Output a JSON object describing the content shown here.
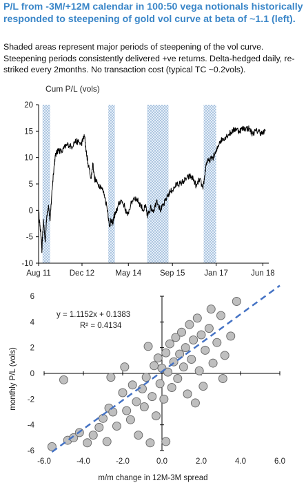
{
  "title": "P/L from -3M/+12M calendar in 100:50 vega notionals historically responded to steepening of gold vol curve at beta of ~1.1 (left).",
  "subtitle": "Shaded areas represent major periods of steepening of the vol curve. Steepening periods consistently delivered +ve returns. Delta-hedged daily, re-striked every 2months. No transaction cost (typical TC ~0.2vols).",
  "chart_data": [
    {
      "type": "line",
      "title": "",
      "ylabel": "Cum P/L (vols)",
      "xlabel": "",
      "ylim": [
        -10,
        20
      ],
      "yticks": [
        -10,
        -5,
        0,
        5,
        10,
        15,
        20
      ],
      "xlim": [
        2011.6,
        2018.6
      ],
      "xtick_labels": [
        "Aug 11",
        "Dec 12",
        "May 14",
        "Sep 15",
        "Jan 17",
        "Jun 18"
      ],
      "xtick_positions": [
        2011.6,
        2012.92,
        2014.33,
        2015.67,
        2017.0,
        2018.42
      ],
      "shaded_periods": [
        [
          2011.72,
          2011.95
        ],
        [
          2013.72,
          2013.92
        ],
        [
          2014.9,
          2015.55
        ],
        [
          2016.62,
          2017.0
        ]
      ],
      "shaded_color": "#aec6e0",
      "line_color": "#000000",
      "series": [
        {
          "x": [
            2011.6,
            2011.64,
            2011.68,
            2011.7,
            2011.72,
            2011.75,
            2011.8,
            2011.85,
            2011.9,
            2011.95,
            2012.0,
            2012.05,
            2012.1,
            2012.15,
            2012.2,
            2012.3,
            2012.4,
            2012.5,
            2012.6,
            2012.7,
            2012.8,
            2012.9,
            2012.95,
            2013.0,
            2013.05,
            2013.1,
            2013.2,
            2013.25,
            2013.3,
            2013.4,
            2013.5,
            2013.6,
            2013.7,
            2013.75,
            2013.8,
            2013.85,
            2013.9,
            2013.95,
            2014.0,
            2014.1,
            2014.2,
            2014.3,
            2014.4,
            2014.5,
            2014.6,
            2014.7,
            2014.8,
            2014.85,
            2014.9,
            2014.95,
            2015.0,
            2015.1,
            2015.2,
            2015.3,
            2015.4,
            2015.5,
            2015.6,
            2015.7,
            2015.8,
            2015.9,
            2016.0,
            2016.1,
            2016.2,
            2016.3,
            2016.4,
            2016.5,
            2016.6,
            2016.65,
            2016.7,
            2016.8,
            2016.9,
            2017.0,
            2017.1,
            2017.2,
            2017.3,
            2017.4,
            2017.5,
            2017.6,
            2017.7,
            2017.8,
            2017.9,
            2018.0,
            2018.1,
            2018.2,
            2018.3,
            2018.4,
            2018.5
          ],
          "y": [
            0,
            -3,
            -5,
            -8,
            -5,
            -2,
            -6,
            -1,
            1,
            -2,
            3,
            7,
            10,
            11,
            11.5,
            11,
            12,
            12.5,
            12,
            13,
            13,
            12.5,
            13.5,
            14,
            11,
            9,
            6,
            9,
            6,
            5,
            4.5,
            3,
            0,
            -3,
            -2,
            -2.5,
            -1,
            -0.5,
            0.5,
            2,
            1,
            -1,
            1,
            2.5,
            2,
            1,
            0,
            1,
            -1,
            -0.5,
            0.5,
            0,
            2,
            0,
            1,
            2.5,
            3.5,
            4,
            5,
            5,
            5.5,
            6,
            6.5,
            6,
            4.5,
            6,
            4,
            6.5,
            9,
            9.5,
            10,
            11,
            13,
            13.5,
            14,
            14.5,
            15,
            15.5,
            15,
            15.5,
            15.5,
            15.5,
            14.5,
            15,
            15,
            14.5,
            15
          ]
        }
      ]
    },
    {
      "type": "scatter",
      "title": "",
      "xlabel": "m/m change in 12M-3M spread",
      "ylabel": "monthly P/L (vols)",
      "xlim": [
        -6,
        6
      ],
      "ylim": [
        -6,
        6
      ],
      "xtick_labels": [
        "-6.0",
        "-4.0",
        "-2.0",
        "0.0",
        "2.0",
        "4.0",
        "6.0"
      ],
      "ytick_labels": [
        "-6",
        "-4",
        "-2",
        "0",
        "2",
        "4",
        "6"
      ],
      "marker_fill": "#bfbfbf",
      "marker_edge": "#6e6e6e",
      "trendline": {
        "slope": 1.1152,
        "intercept": 0.1383,
        "color": "#4472c4",
        "style": "dashed"
      },
      "annotations": [
        "y = 1.1152x + 0.1383",
        "R² = 0.4134"
      ],
      "points": [
        [
          -5.6,
          -5.7
        ],
        [
          -4.8,
          -5.2
        ],
        [
          -4.5,
          -5.0
        ],
        [
          -4.2,
          -4.6
        ],
        [
          -3.8,
          -5.4
        ],
        [
          -3.5,
          -4.8
        ],
        [
          -3.2,
          -4.2
        ],
        [
          -3.0,
          -3.5
        ],
        [
          -2.8,
          -5.3
        ],
        [
          -2.7,
          -2.7
        ],
        [
          -2.5,
          -3.0
        ],
        [
          -2.3,
          -4.1
        ],
        [
          -2.0,
          -1.5
        ],
        [
          -1.8,
          -2.9
        ],
        [
          -1.6,
          -3.6
        ],
        [
          -1.5,
          -0.9
        ],
        [
          -1.3,
          -2.2
        ],
        [
          -1.2,
          -4.8
        ],
        [
          -1.0,
          -1.2
        ],
        [
          -0.9,
          -2.6
        ],
        [
          -0.8,
          -0.3
        ],
        [
          -0.6,
          -5.4
        ],
        [
          -0.5,
          -1.8
        ],
        [
          -0.4,
          0.6
        ],
        [
          -0.3,
          -3.3
        ],
        [
          -0.2,
          1.2
        ],
        [
          -0.1,
          -0.8
        ],
        [
          0.0,
          0.4
        ],
        [
          0.1,
          -2.0
        ],
        [
          0.2,
          1.6
        ],
        [
          0.3,
          0.1
        ],
        [
          0.4,
          2.3
        ],
        [
          0.5,
          -1.1
        ],
        [
          0.6,
          0.9
        ],
        [
          0.7,
          2.8
        ],
        [
          0.8,
          -0.4
        ],
        [
          0.9,
          1.5
        ],
        [
          1.0,
          3.2
        ],
        [
          1.1,
          0.5
        ],
        [
          1.2,
          2.0
        ],
        [
          1.3,
          -1.6
        ],
        [
          1.4,
          3.8
        ],
        [
          1.5,
          1.1
        ],
        [
          1.6,
          2.6
        ],
        [
          1.8,
          4.3
        ],
        [
          1.9,
          0.2
        ],
        [
          2.0,
          3.0
        ],
        [
          2.1,
          -1.0
        ],
        [
          2.2,
          1.8
        ],
        [
          2.4,
          3.5
        ],
        [
          2.5,
          5.0
        ],
        [
          2.6,
          0.8
        ],
        [
          2.8,
          2.4
        ],
        [
          3.0,
          4.5
        ],
        [
          3.2,
          1.4
        ],
        [
          3.5,
          2.9
        ],
        [
          3.8,
          5.6
        ],
        [
          -5.0,
          -0.5
        ],
        [
          -2.6,
          -0.3
        ],
        [
          -1.9,
          0.5
        ],
        [
          -0.7,
          2.1
        ],
        [
          0.2,
          -5.3
        ],
        [
          1.7,
          -2.3
        ],
        [
          3.1,
          -0.4
        ]
      ]
    }
  ]
}
